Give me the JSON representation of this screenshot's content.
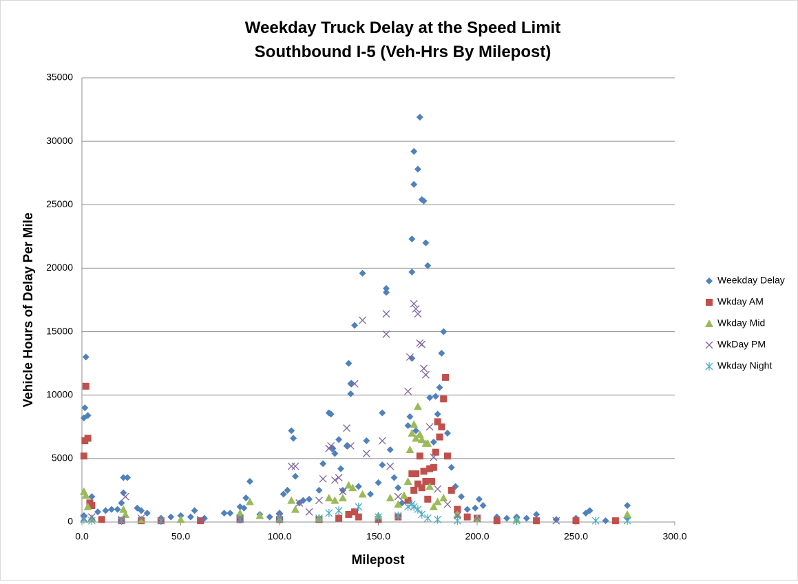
{
  "chart_data": {
    "type": "scatter",
    "title": [
      "Weekday Truck Delay at the Speed Limit",
      "Southbound I-5 (Veh-Hrs By Milepost)"
    ],
    "x_label": "Milepost",
    "y_label": "Vehicle Hours of Delay Per Mile",
    "xlim": [
      0,
      300
    ],
    "xticks": [
      {
        "value": 0,
        "label": "0.0"
      },
      {
        "value": 50,
        "label": "50.0"
      },
      {
        "value": 100,
        "label": "100.0"
      },
      {
        "value": 150,
        "label": "150.0"
      },
      {
        "value": 200,
        "label": "200.0"
      },
      {
        "value": 250,
        "label": "250.0"
      },
      {
        "value": 300,
        "label": "300.0"
      }
    ],
    "ylim": [
      0,
      35000
    ],
    "yticks": [
      0,
      5000,
      10000,
      15000,
      20000,
      25000,
      30000,
      35000
    ],
    "grid": true,
    "legend": "right",
    "series": [
      {
        "name": "Weekday Delay",
        "color": "#4f81bd",
        "marker": "diamond",
        "x": [
          1,
          1.5,
          2,
          3,
          1,
          5,
          8,
          12,
          15,
          18,
          20,
          21,
          21,
          23,
          28,
          30,
          33,
          40,
          45,
          50,
          55,
          57,
          62,
          72,
          75,
          80,
          82,
          83,
          85,
          90,
          95,
          100,
          102,
          104,
          106,
          107,
          108,
          110,
          112,
          115,
          120,
          122,
          125,
          126,
          127,
          128,
          130,
          131,
          132,
          134,
          135,
          136,
          136,
          138,
          140,
          142,
          144,
          146,
          150,
          152,
          152,
          154,
          154,
          156,
          158,
          160,
          162,
          165,
          166,
          167,
          167,
          167,
          168,
          168,
          169,
          170,
          171,
          172,
          173,
          174,
          175,
          176,
          178,
          179,
          180,
          181,
          182,
          183,
          185,
          187,
          189,
          192,
          195,
          199,
          201,
          203,
          210,
          215,
          220,
          225,
          230,
          240,
          250,
          255,
          257,
          265,
          276,
          276
        ],
        "values": [
          8200,
          9000,
          13000,
          8400,
          500,
          2000,
          800,
          900,
          1000,
          1000,
          1500,
          2300,
          3500,
          3500,
          1100,
          900,
          700,
          300,
          400,
          500,
          400,
          900,
          300,
          700,
          700,
          1200,
          1100,
          1900,
          3200,
          600,
          400,
          700,
          2200,
          2500,
          7200,
          6600,
          3600,
          1500,
          1700,
          1800,
          2500,
          4600,
          8600,
          8500,
          5800,
          5400,
          6500,
          4200,
          2500,
          6000,
          12500,
          10100,
          10900,
          15500,
          2800,
          19600,
          6400,
          2200,
          3100,
          4500,
          8600,
          18100,
          18400,
          5700,
          3500,
          2700,
          1500,
          7600,
          8300,
          22300,
          19700,
          12900,
          26600,
          29200,
          7200,
          27800,
          31900,
          25400,
          25300,
          22000,
          20200,
          9800,
          6300,
          9900,
          8500,
          10600,
          13300,
          15000,
          7000,
          4300,
          2800,
          2000,
          1000,
          1100,
          1800,
          1300,
          400,
          300,
          400,
          300,
          600,
          200,
          300,
          700,
          900,
          100,
          1300,
          300
        ]
      },
      {
        "name": "Wkday AM",
        "color": "#c0504d",
        "marker": "square",
        "x": [
          1,
          1.5,
          2,
          3,
          4,
          5,
          10,
          20,
          30,
          40,
          60,
          80,
          100,
          120,
          130,
          135,
          138,
          140,
          150,
          160,
          165,
          167,
          168,
          169,
          170,
          171,
          172,
          173,
          174,
          175,
          176,
          177,
          178,
          179,
          180,
          181,
          182,
          183,
          184,
          185,
          187,
          190,
          195,
          200,
          210,
          230,
          250,
          270
        ],
        "values": [
          5200,
          6400,
          10700,
          6600,
          1500,
          1300,
          200,
          100,
          100,
          100,
          100,
          200,
          200,
          200,
          300,
          600,
          800,
          400,
          200,
          400,
          1700,
          3800,
          2500,
          3800,
          3000,
          5200,
          2700,
          4000,
          3200,
          1800,
          4200,
          3200,
          4300,
          5500,
          7900,
          6700,
          7500,
          9700,
          11400,
          5200,
          2500,
          1000,
          400,
          300,
          100,
          100,
          100,
          100
        ]
      },
      {
        "name": "Wkday Mid",
        "color": "#9bbb59",
        "marker": "triangle",
        "x": [
          1,
          2,
          3,
          5,
          21,
          22,
          30,
          50,
          80,
          85,
          90,
          100,
          106,
          108,
          120,
          125,
          128,
          132,
          135,
          137,
          142,
          150,
          156,
          160,
          163,
          165,
          166,
          167,
          168,
          169,
          170,
          171,
          172,
          174,
          175,
          176,
          178,
          180,
          183,
          190,
          200,
          220,
          276
        ],
        "values": [
          2400,
          2100,
          1200,
          300,
          1000,
          600,
          200,
          200,
          700,
          1600,
          500,
          300,
          1700,
          1000,
          300,
          1900,
          1700,
          1900,
          2900,
          2700,
          2200,
          500,
          1900,
          1400,
          2100,
          3200,
          5700,
          7000,
          7700,
          6600,
          9100,
          6900,
          6500,
          6200,
          6200,
          2800,
          1200,
          1600,
          1900,
          600,
          300,
          200,
          600
        ]
      },
      {
        "name": "WkDay PM",
        "color": "#8064a2",
        "marker": "x",
        "x": [
          1,
          5,
          20,
          22,
          30,
          60,
          80,
          100,
          106,
          108,
          110,
          115,
          120,
          122,
          125,
          126,
          128,
          130,
          132,
          134,
          136,
          138,
          142,
          144,
          152,
          154,
          154,
          156,
          160,
          165,
          166,
          168,
          169,
          170,
          171,
          172,
          173,
          174,
          176,
          178,
          180,
          185,
          190,
          200,
          240
        ],
        "values": [
          300,
          400,
          200,
          2000,
          300,
          200,
          300,
          400,
          4400,
          4400,
          1500,
          800,
          1700,
          3400,
          5800,
          6000,
          3300,
          3500,
          2400,
          7400,
          6000,
          10900,
          15900,
          5400,
          6400,
          14800,
          16400,
          4400,
          2000,
          10300,
          13000,
          17200,
          16800,
          16400,
          14100,
          14000,
          12100,
          11600,
          7500,
          5100,
          2600,
          1400,
          500,
          300,
          100
        ]
      },
      {
        "name": "Wkday Night",
        "color": "#4bacc6",
        "marker": "asterisk",
        "x": [
          1,
          5,
          20,
          40,
          80,
          100,
          120,
          125,
          130,
          140,
          150,
          160,
          165,
          167,
          168,
          170,
          172,
          175,
          180,
          190,
          220,
          260,
          276
        ],
        "values": [
          200,
          100,
          100,
          100,
          200,
          200,
          300,
          700,
          900,
          1200,
          400,
          500,
          1200,
          1400,
          1200,
          1000,
          600,
          300,
          200,
          100,
          100,
          100,
          100
        ]
      }
    ]
  }
}
